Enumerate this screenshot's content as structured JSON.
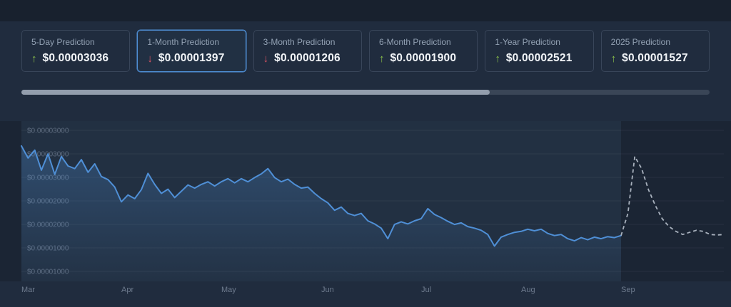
{
  "cards": [
    {
      "label": "5-Day Prediction",
      "value": "$0.00003036",
      "direction": "up",
      "selected": false
    },
    {
      "label": "1-Month Prediction",
      "value": "$0.00001397",
      "direction": "down",
      "selected": true
    },
    {
      "label": "3-Month Prediction",
      "value": "$0.00001206",
      "direction": "down",
      "selected": false
    },
    {
      "label": "6-Month Prediction",
      "value": "$0.00001900",
      "direction": "up",
      "selected": false
    },
    {
      "label": "1-Year Prediction",
      "value": "$0.00002521",
      "direction": "up",
      "selected": false
    },
    {
      "label": "2025 Prediction",
      "value": "$0.00001527",
      "direction": "up",
      "selected": false
    }
  ],
  "icons": {
    "up_arrow": "↑",
    "down_arrow": "↓"
  },
  "colors": {
    "up_green": "#8bc34a",
    "down_red": "#e25565",
    "selected_border": "#4f8fd6",
    "line_blue": "#4f8fd6",
    "prediction_gray": "#a9b2be",
    "plot_bg": "#1b2534",
    "history_band": "rgba(99,143,201,0.10)",
    "gridline": "rgba(255,255,255,0.055)",
    "y_label": "#5f6d80",
    "x_label": "#6d7a8d"
  },
  "scrollbar": {
    "thumb_percent": 68
  },
  "chart_data": {
    "type": "line",
    "title": "",
    "unit": "USD, values stored as price x 1e8 (e.g. 3380 = $0.00003380)",
    "x_axis_labels": [
      "Mar",
      "Apr",
      "May",
      "Jun",
      "Jul",
      "Aug",
      "Sep"
    ],
    "y_axis_labels": [
      "$0.00003000",
      "$0.00003000",
      "$0.00003000",
      "$0.00002000",
      "$0.00002000",
      "$0.00001000",
      "$0.00001000"
    ],
    "ylim": [
      1000,
      3500
    ],
    "grid": "horizontal",
    "legend": "none",
    "series": [
      {
        "name": "historical-price",
        "style": "solid",
        "color": "#4f8fd6",
        "values": [
          3380,
          3150,
          3300,
          2920,
          3230,
          2840,
          3180,
          3000,
          2950,
          3120,
          2880,
          3040,
          2800,
          2740,
          2600,
          2320,
          2450,
          2380,
          2550,
          2860,
          2650,
          2480,
          2560,
          2400,
          2520,
          2640,
          2580,
          2650,
          2700,
          2620,
          2700,
          2760,
          2680,
          2760,
          2700,
          2780,
          2850,
          2950,
          2780,
          2700,
          2750,
          2650,
          2580,
          2600,
          2480,
          2380,
          2300,
          2160,
          2220,
          2100,
          2060,
          2100,
          1960,
          1900,
          1820,
          1620,
          1890,
          1940,
          1900,
          1960,
          2000,
          2190,
          2080,
          2020,
          1950,
          1890,
          1920,
          1850,
          1820,
          1780,
          1700,
          1480,
          1650,
          1700,
          1740,
          1760,
          1800,
          1770,
          1800,
          1720,
          1680,
          1700,
          1620,
          1580,
          1640,
          1600,
          1650,
          1620,
          1660,
          1640,
          1680
        ]
      },
      {
        "name": "predicted-price",
        "style": "dashed",
        "color": "#a9b2be",
        "values": [
          1680,
          2100,
          3180,
          2950,
          2550,
          2250,
          2000,
          1850,
          1760,
          1700,
          1740,
          1780,
          1760,
          1700,
          1690,
          1700
        ]
      }
    ]
  }
}
